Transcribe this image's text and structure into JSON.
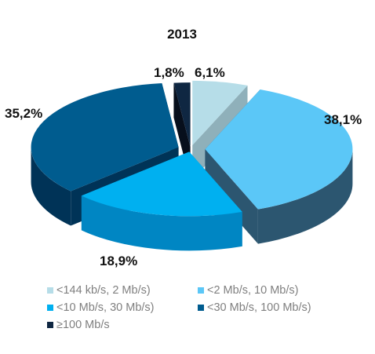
{
  "chart_data": {
    "type": "pie",
    "title": "2013",
    "categories": [
      "<144 kb/s, 2 Mb/s)",
      "<2 Mb/s, 10 Mb/s)",
      "<10 Mb/s, 30 Mb/s)",
      "<30 Mb/s, 100 Mb/s)",
      "≥100 Mb/s"
    ],
    "values": [
      6.1,
      38.1,
      18.9,
      35.2,
      1.8
    ],
    "data_labels": [
      "6,1%",
      "38,1%",
      "18,9%",
      "35,2%",
      "1,8%"
    ],
    "colors": [
      "#b6dde8",
      "#5bc7f7",
      "#00b0f0",
      "#005c8f",
      "#0f2742"
    ],
    "side_colors": [
      "#8fb0ba",
      "#2c5670",
      "#0086c3",
      "#003357",
      "#070f1c"
    ],
    "legend_position": "bottom",
    "exploded": true,
    "three_d": true
  }
}
